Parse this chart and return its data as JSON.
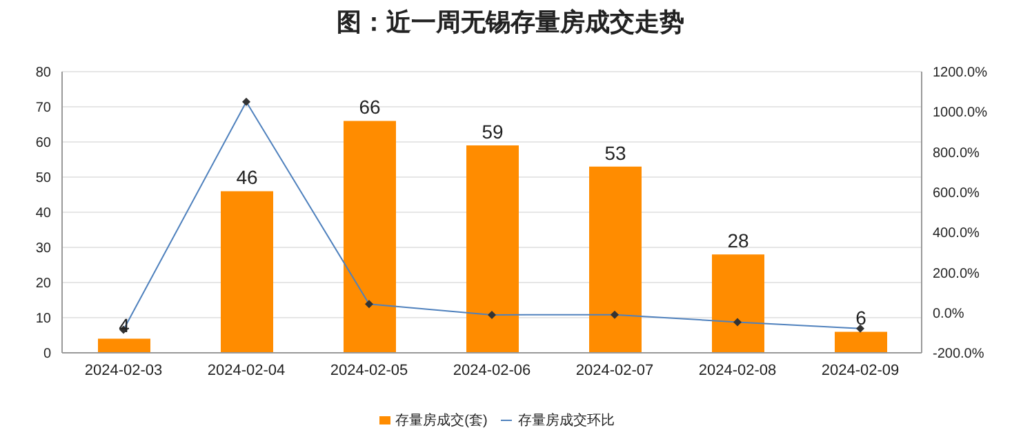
{
  "chart_data": {
    "type": "bar",
    "title": "图：近一周无锡存量房成交走势",
    "categories": [
      "2024-02-03",
      "2024-02-04",
      "2024-02-05",
      "2024-02-06",
      "2024-02-07",
      "2024-02-08",
      "2024-02-09"
    ],
    "series": [
      {
        "name": "存量房成交(套)",
        "color": "#ff8c00",
        "values": [
          4,
          46,
          66,
          59,
          53,
          28,
          6
        ],
        "data_labels": true
      },
      {
        "name": "存量房成交环比",
        "type": "line",
        "axis": "y2",
        "color": "#4f81bd",
        "marker": "diamond",
        "values": [
          -85,
          1050,
          43,
          -11,
          -10,
          -47,
          -79
        ]
      }
    ],
    "ylim": [
      0,
      80
    ],
    "yticks": [
      0,
      10,
      20,
      30,
      40,
      50,
      60,
      70,
      80
    ],
    "y2lim": [
      -200,
      1200
    ],
    "y2ticks": [
      {
        "value": -200,
        "label": "-200.0%"
      },
      {
        "value": 0,
        "label": "0.0%"
      },
      {
        "value": 200,
        "label": "200.0%"
      },
      {
        "value": 400,
        "label": "400.0%"
      },
      {
        "value": 600,
        "label": "600.0%"
      },
      {
        "value": 800,
        "label": "800.0%"
      },
      {
        "value": 1000,
        "label": "1000.0%"
      },
      {
        "value": 1200,
        "label": "1200.0%"
      }
    ],
    "grid": "y",
    "legend": "bottom"
  }
}
